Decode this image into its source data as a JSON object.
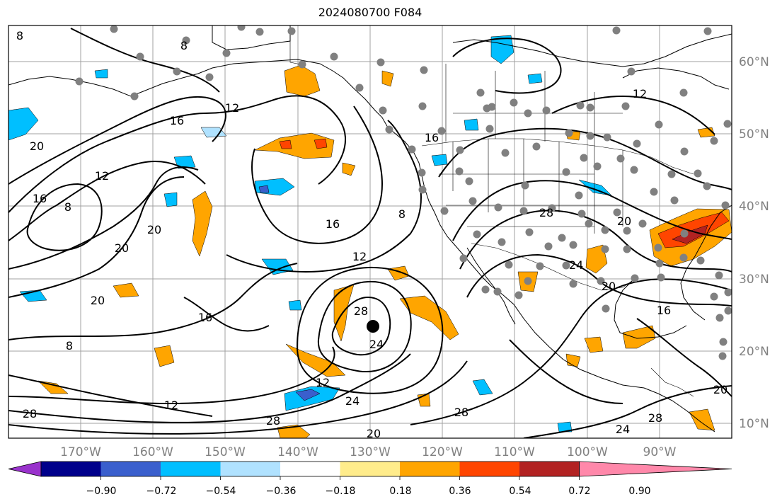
{
  "title": "2024080700 F084",
  "longitude_labels": [
    "170°W",
    "160°W",
    "150°W",
    "140°W",
    "130°W",
    "120°W",
    "110°W",
    "100°W",
    "90°W"
  ],
  "latitude_labels": [
    "60°N",
    "50°N",
    "40°N",
    "30°N",
    "20°N",
    "10°N"
  ],
  "colorbar": {
    "tick_labels": [
      "−0.90",
      "−0.72",
      "−0.54",
      "−0.36",
      "−0.18",
      "0.18",
      "0.36",
      "0.54",
      "0.72",
      "0.90"
    ],
    "colors": [
      "#9932cc",
      "#00008b",
      "#3a5fcd",
      "#00bfff",
      "#b0e2ff",
      "#ffffff",
      "#ffec8b",
      "#ffa500",
      "#ff4500",
      "#b22222",
      "#ff88aa"
    ]
  },
  "contour_labels": [
    {
      "text": "8"
    },
    {
      "text": "8"
    },
    {
      "text": "12"
    },
    {
      "text": "16"
    },
    {
      "text": "20"
    },
    {
      "text": "12"
    },
    {
      "text": "16"
    },
    {
      "text": "8"
    },
    {
      "text": "20"
    },
    {
      "text": "20"
    },
    {
      "text": "16"
    },
    {
      "text": "12"
    },
    {
      "text": "28"
    },
    {
      "text": "24"
    },
    {
      "text": "8"
    },
    {
      "text": "20"
    },
    {
      "text": "16"
    },
    {
      "text": "8"
    },
    {
      "text": "12"
    },
    {
      "text": "24"
    },
    {
      "text": "28"
    },
    {
      "text": "20"
    },
    {
      "text": "28"
    },
    {
      "text": "12"
    },
    {
      "text": "16"
    },
    {
      "text": "20"
    },
    {
      "text": "28"
    },
    {
      "text": "24"
    },
    {
      "text": "20"
    },
    {
      "text": "16"
    },
    {
      "text": "28"
    },
    {
      "text": "24"
    },
    {
      "text": "28"
    },
    {
      "text": "20"
    },
    {
      "text": "12"
    }
  ],
  "colors": {
    "contour": "#000000",
    "coast": "#000000",
    "grid": "#a0a0a0",
    "axis_label": "#808080",
    "obs_dot": "#808080",
    "center_dot": "#000000"
  }
}
